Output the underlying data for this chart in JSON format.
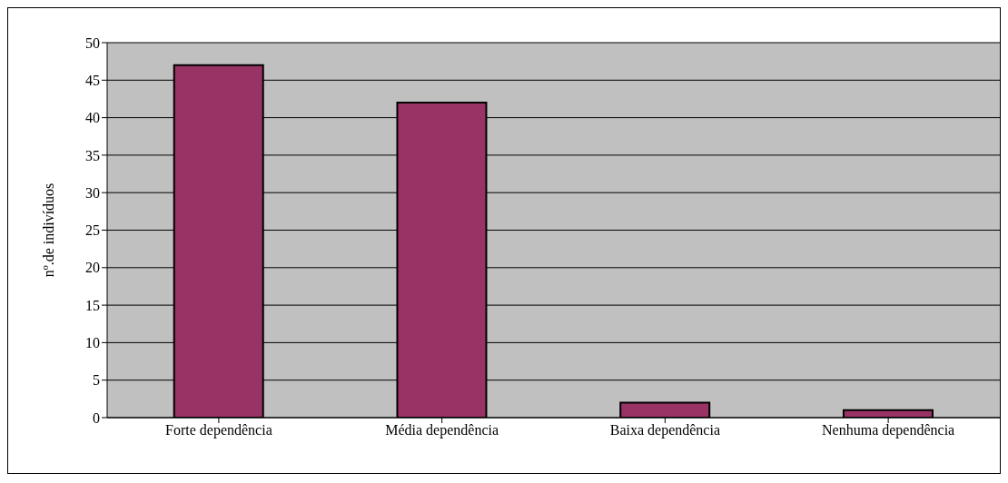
{
  "chart_data": {
    "type": "bar",
    "ylabel": "nº.de indivíduos",
    "categories": [
      "Forte dependência",
      "Média dependência",
      "Baixa dependência",
      "Nenhuma dependência"
    ],
    "values": [
      47,
      42,
      2,
      1
    ],
    "color": "#993366",
    "ylim": [
      0,
      50
    ],
    "yticks": [
      0,
      5,
      10,
      15,
      20,
      25,
      30,
      35,
      40,
      45,
      50
    ],
    "grid": "y",
    "legend": false
  }
}
